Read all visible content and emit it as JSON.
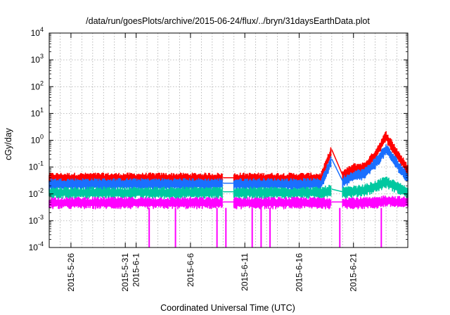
{
  "chart_data": {
    "type": "line",
    "title": "/data/run/goesPlots/archive/2015-06-24/flux/../bryn/31daysEarthData.plot",
    "xlabel": "Coordinated Universal Time (UTC)",
    "ylabel": "cGy/day",
    "yscale": "log",
    "ylim": [
      0.0001,
      10000
    ],
    "y_ticks": [
      {
        "value": 0.0001,
        "base": "10",
        "exp": "-4"
      },
      {
        "value": 0.001,
        "base": "10",
        "exp": "-3"
      },
      {
        "value": 0.01,
        "base": "10",
        "exp": "-2"
      },
      {
        "value": 0.1,
        "base": "10",
        "exp": "-1"
      },
      {
        "value": 1,
        "base": "10",
        "exp": "0"
      },
      {
        "value": 10,
        "base": "10",
        "exp": "1"
      },
      {
        "value": 100,
        "base": "10",
        "exp": "2"
      },
      {
        "value": 1000,
        "base": "10",
        "exp": "3"
      },
      {
        "value": 10000,
        "base": "10",
        "exp": "4"
      }
    ],
    "xlim": [
      "2015-05-24",
      "2015-06-26"
    ],
    "x_ticks": [
      {
        "date": "2015-05-26",
        "label": "2015-5-26"
      },
      {
        "date": "2015-05-31",
        "label": "2015-5-31"
      },
      {
        "date": "2015-06-01",
        "label": "2015-6-1"
      },
      {
        "date": "2015-06-06",
        "label": "2015-6-6"
      },
      {
        "date": "2015-06-11",
        "label": "2015-6-11"
      },
      {
        "date": "2015-06-16",
        "label": "2015-6-16"
      },
      {
        "date": "2015-06-21",
        "label": "2015-6-21"
      }
    ],
    "grid": true,
    "series_colors": [
      "#ff0000",
      "#1a6fff",
      "#00c8a0",
      "#ff00ff"
    ],
    "series": [
      {
        "color": "#ff0000",
        "x": [
          "2015-05-24",
          "2015-06-02",
          "2015-06-09",
          "2015-06-10",
          "2015-06-18",
          "2015-06-19",
          "2015-06-20",
          "2015-06-21",
          "2015-06-22",
          "2015-06-23",
          "2015-06-24",
          "2015-06-26"
        ],
        "y": [
          0.04,
          0.04,
          0.04,
          0.04,
          0.04,
          0.45,
          0.05,
          0.09,
          0.1,
          0.3,
          1.5,
          0.08
        ]
      },
      {
        "color": "#1a6fff",
        "x": [
          "2015-05-24",
          "2015-06-02",
          "2015-06-09",
          "2015-06-10",
          "2015-06-18",
          "2015-06-19",
          "2015-06-20",
          "2015-06-21",
          "2015-06-22",
          "2015-06-23",
          "2015-06-24",
          "2015-06-26"
        ],
        "y": [
          0.025,
          0.025,
          0.025,
          0.025,
          0.025,
          0.2,
          0.03,
          0.05,
          0.06,
          0.15,
          0.5,
          0.04
        ]
      },
      {
        "color": "#00c8a0",
        "x": [
          "2015-05-24",
          "2015-06-02",
          "2015-06-09",
          "2015-06-10",
          "2015-06-18",
          "2015-06-19",
          "2015-06-20",
          "2015-06-21",
          "2015-06-22",
          "2015-06-23",
          "2015-06-24",
          "2015-06-26"
        ],
        "y": [
          0.012,
          0.012,
          0.012,
          0.012,
          0.012,
          0.015,
          0.012,
          0.013,
          0.015,
          0.02,
          0.03,
          0.012
        ]
      },
      {
        "color": "#ff00ff",
        "x": [
          "2015-05-24",
          "2015-06-02",
          "2015-06-09",
          "2015-06-10",
          "2015-06-18",
          "2015-06-19",
          "2015-06-20",
          "2015-06-21",
          "2015-06-22",
          "2015-06-23",
          "2015-06-24",
          "2015-06-26"
        ],
        "y": [
          0.005,
          0.005,
          0.005,
          0.005,
          0.005,
          0.005,
          0.005,
          0.005,
          0.005,
          0.005,
          0.006,
          0.005
        ]
      }
    ],
    "data_gaps": [
      [
        "2015-06-09",
        "2015-06-10"
      ],
      [
        "2015-06-19",
        "2015-06-20"
      ]
    ]
  }
}
